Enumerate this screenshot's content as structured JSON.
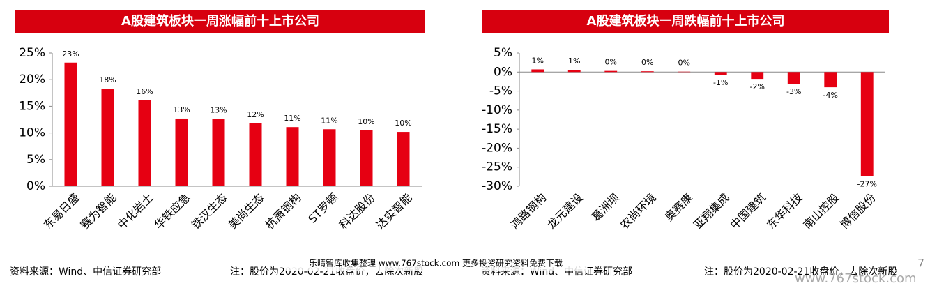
{
  "chart_data": [
    {
      "type": "bar",
      "title": "A股建筑板块一周涨幅前十上市公司",
      "categories": [
        "东易日盛",
        "赛为智能",
        "中化岩土",
        "华铁应急",
        "铁汉生态",
        "美尚生态",
        "杭萧钢构",
        "ST罗顿",
        "科达股份",
        "达实智能"
      ],
      "values": [
        23.2,
        18.3,
        16.1,
        12.7,
        12.6,
        11.8,
        11.1,
        10.7,
        10.5,
        10.2
      ],
      "value_labels": [
        "23%",
        "18%",
        "16%",
        "13%",
        "13%",
        "12%",
        "11%",
        "11%",
        "10%",
        "10%"
      ],
      "color": "#e60012",
      "ylim": [
        0,
        25
      ],
      "yticks": [
        {
          "value": 0,
          "label": "0%"
        },
        {
          "value": 5,
          "label": "5%"
        },
        {
          "value": 10,
          "label": "10%"
        },
        {
          "value": 15,
          "label": "15%"
        },
        {
          "value": 20,
          "label": "20%"
        },
        {
          "value": 25,
          "label": "25%"
        }
      ]
    },
    {
      "type": "bar",
      "title": "A股建筑板块一周跌幅前十上市公司",
      "categories": [
        "鸿路钢构",
        "龙元建设",
        "葛洲坝",
        "农尚环境",
        "奥赛康",
        "亚翔集成",
        "中国建筑",
        "东华科技",
        "南山控股",
        "博信股份"
      ],
      "values": [
        0.7,
        0.6,
        0.3,
        0.2,
        0.1,
        -0.7,
        -1.8,
        -3.1,
        -4.0,
        -27.3
      ],
      "value_labels": [
        "1%",
        "1%",
        "0%",
        "0%",
        "0%",
        "-1%",
        "-2%",
        "-3%",
        "-4%",
        "-27%"
      ],
      "color": "#e60012",
      "ylim": [
        -30,
        5
      ],
      "yticks": [
        {
          "value": -30,
          "label": "-30%"
        },
        {
          "value": -25,
          "label": "-25%"
        },
        {
          "value": -20,
          "label": "-20%"
        },
        {
          "value": -15,
          "label": "-15%"
        },
        {
          "value": -10,
          "label": "-10%"
        },
        {
          "value": -5,
          "label": "-5%"
        },
        {
          "value": 0,
          "label": "0%"
        },
        {
          "value": 5,
          "label": "5%"
        }
      ]
    }
  ],
  "footer": {
    "source_left": "资料来源：Wind、中信证券研究部",
    "note_left": "注：股价为2020-02-21收盘价，去除次新股",
    "watermark": "乐晴智库收集整理 www.767stock.com 更多投资研究资料免费下载",
    "source_right": "资料来源：Wind、中信证券研究部",
    "note_right": "注：股价为2020-02-21收盘价，去除次新股",
    "page": "7",
    "site": "www.767stock.com"
  }
}
